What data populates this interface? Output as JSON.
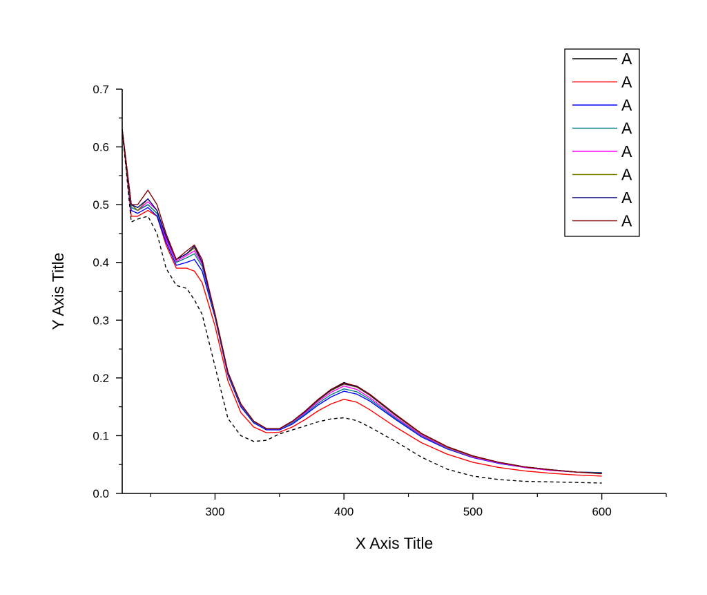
{
  "chart_data": {
    "type": "line",
    "xlabel": "X Axis Title",
    "ylabel": "Y Axis Title",
    "xlim": [
      228,
      650
    ],
    "ylim": [
      0,
      0.7
    ],
    "x_ticks": [
      300,
      400,
      500,
      600
    ],
    "y_ticks": [
      0.0,
      0.1,
      0.2,
      0.3,
      0.4,
      0.5,
      0.6,
      0.7
    ],
    "x_tick_labels": [
      "300",
      "400",
      "500",
      "600"
    ],
    "y_tick_labels": [
      "0.0",
      "0.1",
      "0.2",
      "0.3",
      "0.4",
      "0.5",
      "0.6",
      "0.7"
    ],
    "grid": false,
    "legend_position": "top-right",
    "x": [
      228,
      235,
      240,
      248,
      255,
      262,
      270,
      278,
      284,
      290,
      300,
      310,
      320,
      330,
      340,
      350,
      360,
      370,
      380,
      390,
      400,
      410,
      420,
      440,
      460,
      480,
      500,
      520,
      540,
      560,
      580,
      600
    ],
    "series": [
      {
        "name": "A",
        "color": "#000000",
        "dash": "solid",
        "values": [
          0.63,
          0.5,
          0.49,
          0.5,
          0.485,
          0.44,
          0.405,
          0.415,
          0.425,
          0.4,
          0.31,
          0.21,
          0.155,
          0.125,
          0.112,
          0.112,
          0.125,
          0.142,
          0.162,
          0.18,
          0.192,
          0.185,
          0.17,
          0.135,
          0.103,
          0.08,
          0.064,
          0.054,
          0.046,
          0.041,
          0.037,
          0.035
        ]
      },
      {
        "name": "A",
        "color": "#ff0000",
        "dash": "solid",
        "values": [
          0.63,
          0.48,
          0.48,
          0.49,
          0.48,
          0.43,
          0.39,
          0.39,
          0.385,
          0.365,
          0.29,
          0.195,
          0.14,
          0.115,
          0.105,
          0.106,
          0.115,
          0.128,
          0.143,
          0.155,
          0.163,
          0.158,
          0.145,
          0.115,
          0.088,
          0.068,
          0.054,
          0.045,
          0.039,
          0.035,
          0.032,
          0.03
        ]
      },
      {
        "name": "A",
        "color": "#0000ff",
        "dash": "solid",
        "values": [
          0.63,
          0.49,
          0.485,
          0.495,
          0.48,
          0.435,
          0.395,
          0.4,
          0.405,
          0.385,
          0.305,
          0.205,
          0.15,
          0.122,
          0.11,
          0.11,
          0.12,
          0.136,
          0.153,
          0.167,
          0.177,
          0.172,
          0.16,
          0.128,
          0.098,
          0.077,
          0.062,
          0.052,
          0.045,
          0.04,
          0.037,
          0.036
        ]
      },
      {
        "name": "A",
        "color": "#008080",
        "dash": "solid",
        "values": [
          0.63,
          0.495,
          0.49,
          0.5,
          0.485,
          0.44,
          0.4,
          0.408,
          0.415,
          0.393,
          0.308,
          0.208,
          0.153,
          0.124,
          0.112,
          0.112,
          0.122,
          0.138,
          0.156,
          0.171,
          0.181,
          0.176,
          0.163,
          0.13,
          0.1,
          0.078,
          0.063,
          0.053,
          0.045,
          0.04,
          0.037,
          0.036
        ]
      },
      {
        "name": "A",
        "color": "#ff00ff",
        "dash": "solid",
        "values": [
          0.63,
          0.5,
          0.49,
          0.505,
          0.49,
          0.44,
          0.402,
          0.412,
          0.42,
          0.397,
          0.31,
          0.21,
          0.154,
          0.125,
          0.112,
          0.112,
          0.124,
          0.14,
          0.159,
          0.175,
          0.186,
          0.18,
          0.166,
          0.132,
          0.101,
          0.079,
          0.063,
          0.053,
          0.045,
          0.04,
          0.037,
          0.035
        ]
      },
      {
        "name": "A",
        "color": "#808000",
        "dash": "solid",
        "values": [
          0.63,
          0.5,
          0.49,
          0.51,
          0.49,
          0.445,
          0.405,
          0.415,
          0.425,
          0.4,
          0.312,
          0.21,
          0.155,
          0.125,
          0.112,
          0.112,
          0.125,
          0.142,
          0.161,
          0.178,
          0.189,
          0.184,
          0.17,
          0.135,
          0.103,
          0.08,
          0.064,
          0.054,
          0.046,
          0.041,
          0.037,
          0.035
        ]
      },
      {
        "name": "A",
        "color": "#000080",
        "dash": "solid",
        "values": [
          0.63,
          0.5,
          0.495,
          0.51,
          0.49,
          0.445,
          0.405,
          0.415,
          0.428,
          0.4,
          0.31,
          0.21,
          0.155,
          0.125,
          0.112,
          0.112,
          0.125,
          0.142,
          0.162,
          0.179,
          0.19,
          0.185,
          0.171,
          0.136,
          0.104,
          0.081,
          0.065,
          0.054,
          0.046,
          0.041,
          0.037,
          0.035
        ]
      },
      {
        "name": "A",
        "color": "#800000",
        "dash": "solid",
        "values": [
          0.63,
          0.5,
          0.5,
          0.525,
          0.5,
          0.45,
          0.405,
          0.42,
          0.43,
          0.405,
          0.31,
          0.21,
          0.155,
          0.125,
          0.112,
          0.112,
          0.125,
          0.143,
          0.163,
          0.18,
          0.191,
          0.186,
          0.172,
          0.137,
          0.104,
          0.081,
          0.065,
          0.054,
          0.046,
          0.041,
          0.037,
          0.034
        ]
      },
      {
        "color": "#000000",
        "dash": "dashed",
        "values": [
          0.63,
          0.47,
          0.475,
          0.48,
          0.45,
          0.39,
          0.36,
          0.355,
          0.335,
          0.31,
          0.22,
          0.13,
          0.1,
          0.09,
          0.092,
          0.103,
          0.11,
          0.117,
          0.124,
          0.129,
          0.131,
          0.126,
          0.115,
          0.09,
          0.063,
          0.042,
          0.03,
          0.024,
          0.021,
          0.02,
          0.019,
          0.018
        ]
      }
    ]
  }
}
